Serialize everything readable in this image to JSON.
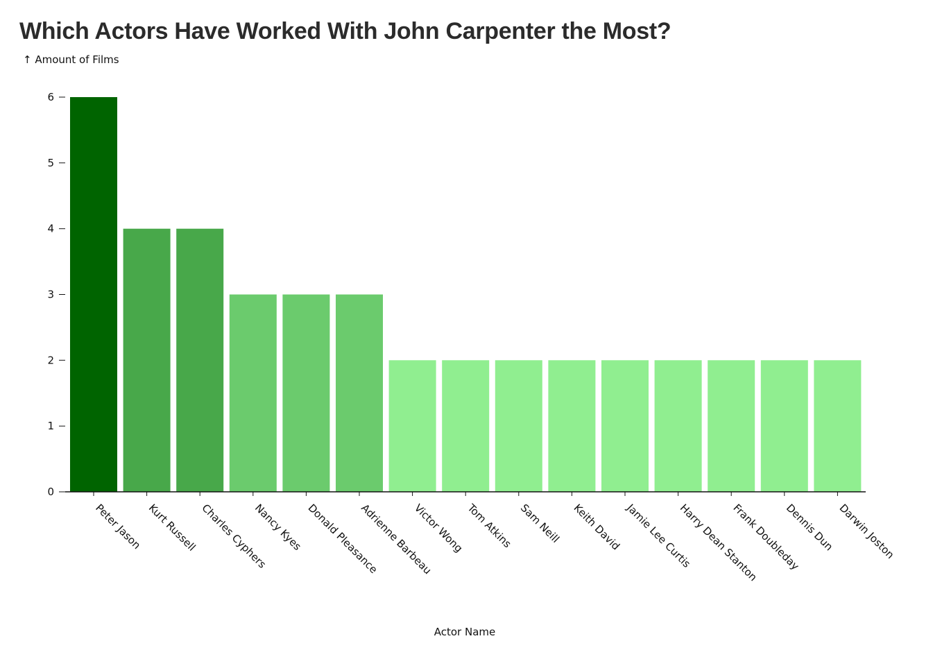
{
  "chart_data": {
    "type": "bar",
    "title": "Which Actors Have Worked With John Carpenter the Most?",
    "ylabel": "↑ Amount of Films",
    "xlabel": "Actor Name",
    "categories": [
      "Peter Jason",
      "Kurt Russell",
      "Charles Cyphers",
      "Nancy Kyes",
      "Donald Pleasance",
      "Adrienne Barbeau",
      "Victor Wong",
      "Tom Atkins",
      "Sam Neill",
      "Keith David",
      "Jamie Lee Curtis",
      "Harry Dean Stanton",
      "Frank Doubleday",
      "Dennis Dun",
      "Darwin Joston"
    ],
    "values": [
      6,
      4,
      4,
      3,
      3,
      3,
      2,
      2,
      2,
      2,
      2,
      2,
      2,
      2,
      2
    ],
    "yticks": [
      "0",
      "1",
      "2",
      "3",
      "4",
      "5",
      "6"
    ],
    "ylim": [
      0,
      6
    ],
    "grid": false,
    "colors": {
      "6": "#006400",
      "4": "#48a84a",
      "3": "#6bcb6d",
      "2": "#90ee90"
    }
  }
}
